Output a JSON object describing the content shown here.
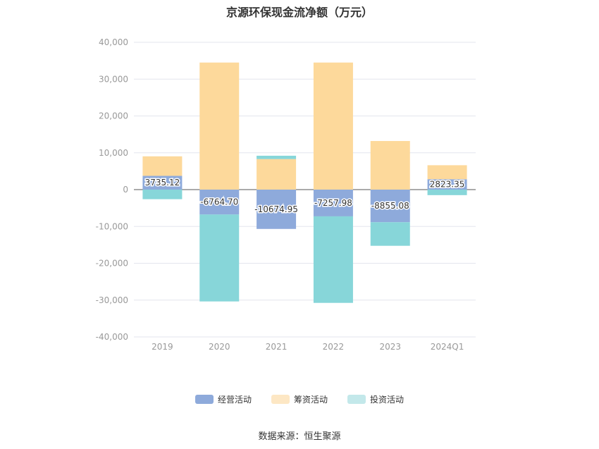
{
  "title": "京源环保现金流净额（万元）",
  "source": "数据来源：恒生聚源",
  "chart_data": {
    "type": "bar",
    "stacked": true,
    "categories": [
      "2019",
      "2020",
      "2021",
      "2022",
      "2023",
      "2024Q1"
    ],
    "ylim": [
      -40000,
      40000
    ],
    "yticks": [
      40000,
      30000,
      20000,
      10000,
      0,
      -10000,
      -20000,
      -30000,
      -40000
    ],
    "ytick_labels": [
      "40,000",
      "30,000",
      "20,000",
      "10,000",
      "0",
      "-10,000",
      "-20,000",
      "-30,000",
      "-40,000"
    ],
    "grid": true,
    "legend_position": "bottom",
    "series": [
      {
        "name": "经营活动",
        "color": "#8eaadb",
        "values": [
          3735.12,
          -6764.7,
          -10674.95,
          -7257.98,
          -8855.08,
          2823.35
        ],
        "labels": [
          "3735.12",
          "-6764.70",
          "-10674.95",
          "-7257.98",
          "-8855.08",
          "2823.35"
        ]
      },
      {
        "name": "筹资活动",
        "color": "#fdd99b",
        "values": [
          5300,
          34500,
          8300,
          34500,
          13200,
          3800
        ]
      },
      {
        "name": "投资活动",
        "color": "#87d6d9",
        "values": [
          -2600,
          -23600,
          900,
          -23500,
          -6400,
          -1500
        ]
      }
    ]
  },
  "legend_colors": {
    "经营活动": "#8eaadb",
    "筹资活动": "#fde7c4",
    "投资活动": "#c3e8ea"
  }
}
